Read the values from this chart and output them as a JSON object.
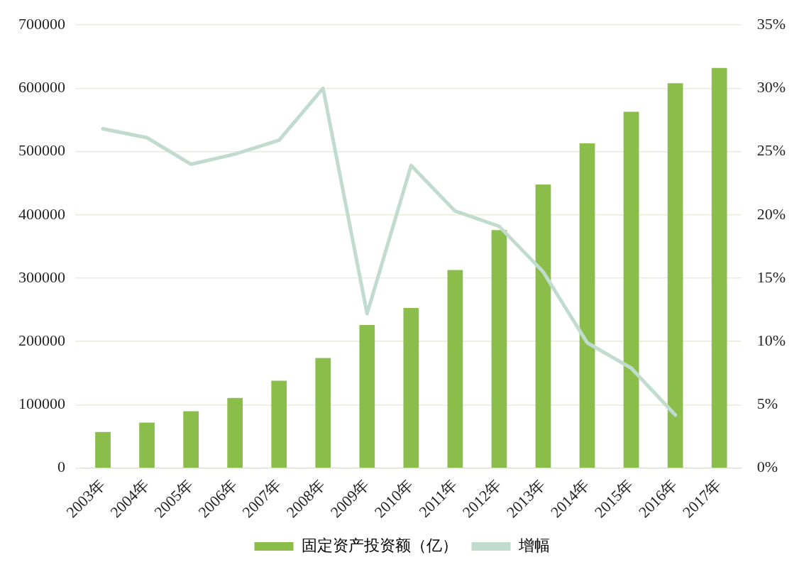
{
  "chart_data": {
    "type": "bar",
    "categories": [
      "2003年",
      "2004年",
      "2005年",
      "2006年",
      "2007年",
      "2008年",
      "2009年",
      "2010年",
      "2011年",
      "2012年",
      "2013年",
      "2014年",
      "2015年",
      "2016年",
      "2017年"
    ],
    "series": [
      {
        "name": "固定资产投资额（亿）",
        "color": "#8bbd4b",
        "values": [
          57000,
          72000,
          90000,
          111000,
          138000,
          174000,
          226000,
          253000,
          313000,
          376000,
          448000,
          513000,
          563000,
          608000,
          632000
        ]
      },
      {
        "name": "增幅",
        "type": "line",
        "axis": "y2",
        "color": "#c1dccf",
        "marker": "none",
        "values": [
          26.8,
          26.1,
          24.0,
          24.8,
          25.9,
          30.0,
          12.2,
          23.9,
          20.3,
          19.1,
          15.5,
          9.9,
          7.9,
          4.2,
          null
        ]
      }
    ],
    "ylim": [
      0,
      700000
    ],
    "yticks": [
      0,
      100000,
      200000,
      300000,
      400000,
      500000,
      600000,
      700000
    ],
    "y2lim": [
      0,
      35
    ],
    "y2ticks": [
      {
        "value": 0,
        "label": "0%"
      },
      {
        "value": 5,
        "label": "5%"
      },
      {
        "value": 10,
        "label": "10%"
      },
      {
        "value": 15,
        "label": "15%"
      },
      {
        "value": 20,
        "label": "20%"
      },
      {
        "value": 25,
        "label": "25%"
      },
      {
        "value": 30,
        "label": "30%"
      },
      {
        "value": 35,
        "label": "35%"
      }
    ],
    "grid": "y",
    "legend": "bottom"
  }
}
